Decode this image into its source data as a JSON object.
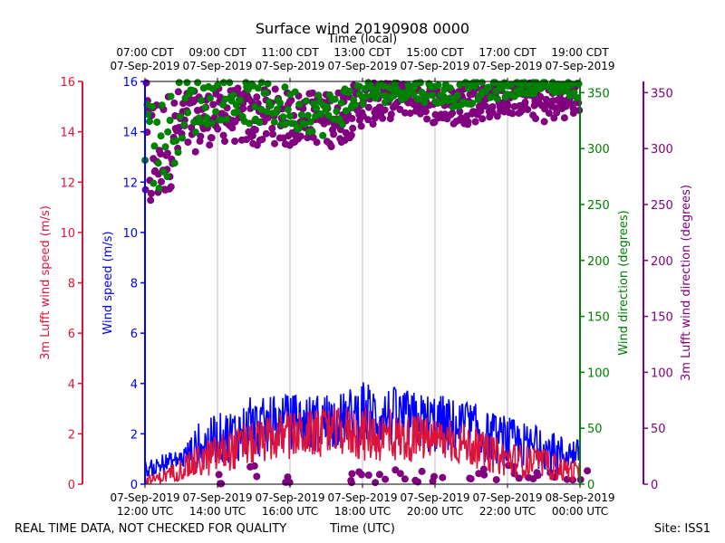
{
  "chart_data": {
    "type": "scatter",
    "title": "Surface wind 20190908 0000",
    "top_axis_label": "Time (local)",
    "xlabel": "Time (UTC)",
    "footer_left": "REAL TIME DATA, NOT CHECKED FOR QUALITY",
    "footer_right": "Site: ISS1",
    "x_range_hours": [
      12,
      24
    ],
    "bottom_ticks": [
      {
        "hour": 12,
        "date": "07-Sep-2019",
        "time": "12:00 UTC"
      },
      {
        "hour": 14,
        "date": "07-Sep-2019",
        "time": "14:00 UTC"
      },
      {
        "hour": 16,
        "date": "07-Sep-2019",
        "time": "16:00 UTC"
      },
      {
        "hour": 18,
        "date": "07-Sep-2019",
        "time": "18:00 UTC"
      },
      {
        "hour": 20,
        "date": "07-Sep-2019",
        "time": "20:00 UTC"
      },
      {
        "hour": 22,
        "date": "07-Sep-2019",
        "time": "22:00 UTC"
      },
      {
        "hour": 24,
        "date": "08-Sep-2019",
        "time": "00:00 UTC"
      }
    ],
    "top_ticks": [
      {
        "hour": 12,
        "time": "07:00 CDT",
        "date": "07-Sep-2019"
      },
      {
        "hour": 14,
        "time": "09:00 CDT",
        "date": "07-Sep-2019"
      },
      {
        "hour": 16,
        "time": "11:00 CDT",
        "date": "07-Sep-2019"
      },
      {
        "hour": 18,
        "time": "13:00 CDT",
        "date": "07-Sep-2019"
      },
      {
        "hour": 20,
        "time": "15:00 CDT",
        "date": "07-Sep-2019"
      },
      {
        "hour": 22,
        "time": "17:00 CDT",
        "date": "07-Sep-2019"
      },
      {
        "hour": 24,
        "time": "19:00 CDT",
        "date": "07-Sep-2019"
      }
    ],
    "axes": {
      "lufft_speed": {
        "label": "3m Lufft wind speed (m/s)",
        "color": "#dc143c",
        "range": [
          0,
          16
        ],
        "ticks": [
          0,
          2,
          4,
          6,
          8,
          10,
          12,
          14,
          16
        ]
      },
      "wind_speed": {
        "label": "Wind speed (m/s)",
        "color": "#0000ff",
        "range": [
          0,
          16
        ],
        "ticks": [
          0,
          2,
          4,
          6,
          8,
          10,
          12,
          14,
          16
        ]
      },
      "wind_dir": {
        "label": "Wind direction (degrees)",
        "color": "#008000",
        "range": [
          0,
          360
        ],
        "ticks": [
          0,
          50,
          100,
          150,
          200,
          250,
          300,
          350
        ]
      },
      "lufft_dir": {
        "label": "3m Lufft wind direction (degrees)",
        "color": "#800080",
        "range": [
          0,
          360
        ],
        "ticks": [
          0,
          50,
          100,
          150,
          200,
          250,
          300,
          350
        ]
      }
    },
    "series": [
      {
        "name": "Wind speed",
        "kind": "line",
        "axis": "wind_speed",
        "color": "#0000ff",
        "x": [
          12.0,
          12.5,
          13.0,
          13.5,
          14.0,
          14.5,
          15.0,
          15.5,
          16.0,
          16.5,
          17.0,
          17.5,
          18.0,
          18.5,
          19.0,
          19.5,
          20.0,
          20.5,
          21.0,
          21.5,
          22.0,
          22.5,
          23.0,
          23.5,
          24.0
        ],
        "y": [
          0.5,
          0.8,
          1.0,
          1.5,
          1.8,
          2.0,
          2.2,
          2.3,
          2.5,
          2.4,
          2.5,
          2.6,
          2.8,
          2.7,
          2.6,
          2.5,
          2.4,
          2.3,
          2.2,
          1.8,
          1.7,
          1.5,
          1.4,
          1.2,
          1.3
        ],
        "y_max": [
          1.1,
          1.3,
          1.4,
          2.6,
          2.9,
          3.4,
          3.5,
          3.6,
          3.5,
          3.7,
          3.6,
          3.6,
          4.2,
          4.0,
          3.9,
          3.6,
          3.8,
          3.4,
          3.3,
          2.9,
          2.7,
          2.5,
          2.2,
          2.0,
          1.7
        ],
        "y_min": [
          0.3,
          0.4,
          0.5,
          0.6,
          0.7,
          0.9,
          0.8,
          1.0,
          1.0,
          1.1,
          1.0,
          1.2,
          1.1,
          1.2,
          1.1,
          1.0,
          1.0,
          0.9,
          0.8,
          0.6,
          0.5,
          0.4,
          0.4,
          0.3,
          0.5
        ]
      },
      {
        "name": "3m Lufft wind speed",
        "kind": "line",
        "axis": "lufft_speed",
        "color": "#dc143c",
        "x": [
          12.0,
          12.5,
          13.0,
          13.5,
          14.0,
          14.5,
          15.0,
          15.5,
          16.0,
          16.5,
          17.0,
          17.5,
          18.0,
          18.5,
          19.0,
          19.5,
          20.0,
          20.5,
          21.0,
          21.5,
          22.0,
          22.5,
          23.0,
          23.5,
          24.0
        ],
        "y": [
          0.1,
          0.3,
          0.6,
          0.9,
          1.2,
          1.4,
          1.6,
          1.8,
          1.9,
          2.0,
          2.0,
          2.1,
          2.0,
          1.9,
          1.8,
          1.8,
          1.8,
          1.7,
          1.5,
          1.2,
          1.0,
          0.9,
          0.8,
          0.6,
          0.5
        ],
        "y_max": [
          0.4,
          0.6,
          1.1,
          1.8,
          2.2,
          2.5,
          2.6,
          2.8,
          3.1,
          2.9,
          3.0,
          3.1,
          3.3,
          3.2,
          2.9,
          2.8,
          2.7,
          2.6,
          2.3,
          2.0,
          1.8,
          1.6,
          1.4,
          1.2,
          0.9
        ],
        "y_min": [
          0.0,
          0.0,
          0.1,
          0.2,
          0.4,
          0.6,
          0.7,
          0.8,
          0.9,
          0.9,
          0.8,
          0.9,
          0.8,
          0.9,
          0.8,
          0.7,
          0.8,
          0.6,
          0.5,
          0.3,
          0.2,
          0.1,
          0.1,
          0.0,
          0.0
        ]
      },
      {
        "name": "Wind direction",
        "kind": "scatter",
        "axis": "wind_dir",
        "color": "#008000",
        "x": [
          12.0,
          12.5,
          13.0,
          13.5,
          14.0,
          14.5,
          15.0,
          15.5,
          16.0,
          16.5,
          17.0,
          17.5,
          18.0,
          18.5,
          19.0,
          19.5,
          20.0,
          20.5,
          21.0,
          21.5,
          22.0,
          22.5,
          23.0,
          23.5,
          24.0
        ],
        "y": [
          320,
          300,
          335,
          340,
          345,
          345,
          340,
          340,
          335,
          335,
          330,
          340,
          350,
          350,
          352,
          352,
          350,
          348,
          350,
          352,
          352,
          355,
          355,
          355,
          352
        ],
        "spread": [
          40,
          45,
          30,
          25,
          20,
          20,
          20,
          20,
          20,
          20,
          20,
          18,
          12,
          10,
          8,
          10,
          10,
          12,
          10,
          8,
          8,
          6,
          6,
          6,
          8
        ]
      },
      {
        "name": "3m Lufft wind direction",
        "kind": "scatter",
        "axis": "lufft_dir",
        "color": "#800080",
        "x": [
          12.0,
          12.5,
          13.0,
          13.5,
          14.0,
          14.5,
          15.0,
          15.5,
          16.0,
          16.5,
          17.0,
          17.5,
          18.0,
          18.5,
          19.0,
          19.5,
          20.0,
          20.5,
          21.0,
          21.5,
          22.0,
          22.5,
          23.0,
          23.5,
          24.0
        ],
        "y": [
          290,
          300,
          320,
          325,
          330,
          330,
          325,
          330,
          325,
          330,
          325,
          330,
          340,
          340,
          345,
          345,
          340,
          338,
          340,
          342,
          345,
          345,
          340,
          342,
          345
        ],
        "spread": [
          70,
          50,
          35,
          25,
          25,
          25,
          25,
          25,
          25,
          22,
          25,
          25,
          20,
          18,
          15,
          15,
          18,
          18,
          18,
          15,
          15,
          15,
          18,
          15,
          15
        ],
        "low_wrap_x": [
          14.0,
          15.0,
          16.0,
          17.5,
          18.0,
          18.5,
          19.0,
          19.5,
          20.0,
          21.0,
          21.5,
          22.0,
          22.5,
          23.0,
          23.5,
          24.0
        ],
        "low_wrap_y": [
          3,
          12,
          5,
          4,
          8,
          6,
          10,
          7,
          5,
          6,
          9,
          12,
          8,
          10,
          6,
          9
        ]
      }
    ]
  }
}
